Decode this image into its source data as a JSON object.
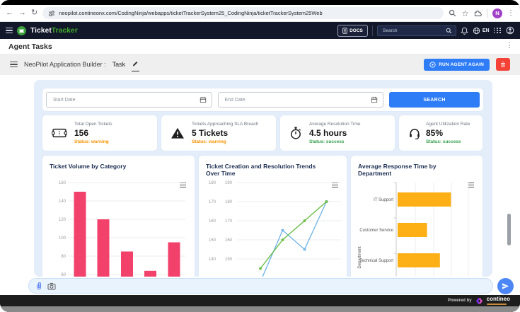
{
  "browser": {
    "url": "neopilot.contineonx.com/CodingNinja/webapps/ticketTrackerSystem25_CodingNinja/ticketTrackerSystem25Web",
    "avatar_initial": "N"
  },
  "navbar": {
    "brand_primary": "Ticket",
    "brand_accent": "Tracker",
    "docs_label": "DOCS",
    "search_placeholder": "Search",
    "language": "EN"
  },
  "page": {
    "title": "Agent Tasks"
  },
  "task_header": {
    "title": "NeoPilot Application Builder :",
    "task_label": "Task",
    "run_button_label": "RUN AGENT AGAIN"
  },
  "filters": {
    "start_date_placeholder": "Start Date",
    "end_date_placeholder": "End Date",
    "search_button_label": "SEARCH"
  },
  "kpis": [
    {
      "icon": "ticket-icon",
      "label": "Total Open Tickets",
      "value": "156",
      "status": "Status: warning",
      "status_color": "#fb9300"
    },
    {
      "icon": "warning-icon",
      "label": "Tickets Approaching SLA Breach",
      "value": "5 Tickets",
      "status": "Status: warning",
      "status_color": "#fb9300"
    },
    {
      "icon": "stopwatch-icon",
      "label": "Average Resolution Time",
      "value": "4.5 hours",
      "status": "Status: success",
      "status_color": "#34a04a"
    },
    {
      "icon": "headset-icon",
      "label": "Agent Utilization Rate",
      "value": "85%",
      "status": "Status: success",
      "status_color": "#34a04a"
    }
  ],
  "chart_data": [
    {
      "type": "bar",
      "title": "Ticket Volume by Category",
      "categories": [
        "",
        "",
        "",
        "",
        ""
      ],
      "values": [
        150,
        120,
        85,
        64,
        95
      ],
      "yticks": [
        160,
        140,
        120,
        100,
        80,
        60
      ],
      "color": "#f2416b",
      "note": "x-axis category labels cut off below viewport"
    },
    {
      "type": "line",
      "title": "Ticket Creation and Resolution Trends Over Time",
      "left_yticks": [
        180,
        170,
        160,
        150,
        140
      ],
      "right_yticks": [
        190,
        180,
        170,
        160,
        150
      ],
      "series": [
        {
          "name": "series-blue",
          "color": "#74b6e8",
          "marker": "square",
          "values": [
            128,
            155,
            145,
            170
          ]
        },
        {
          "name": "series-green",
          "color": "#69bd45",
          "marker": "circle",
          "values": [
            135,
            150,
            160,
            170
          ]
        }
      ],
      "note": "values read against left axis; x-axis labels and legend cut off below viewport"
    },
    {
      "type": "bar-horizontal",
      "title": "Average Response Time by Department",
      "ylabel": "Department",
      "categories": [
        "IT Support",
        "Customer Service",
        "Technical Support"
      ],
      "values": [
        2.9,
        1.6,
        2.3
      ],
      "color": "#fcb016",
      "note": "values in gridline units; x-axis labels cut off below viewport"
    }
  ],
  "footer": {
    "powered_by": "Powered by",
    "brand": "contineo"
  },
  "theme": {
    "accent_blue": "#2e7cf6",
    "navbar_bg": "#12172a",
    "panel_bg": "#e4eefa",
    "brand_green": "#43b02a",
    "warning_color": "#fb9300",
    "success_color": "#34a04a",
    "danger_red": "#f44336",
    "bar_pink": "#f2416b",
    "hbar_orange": "#fcb016"
  }
}
